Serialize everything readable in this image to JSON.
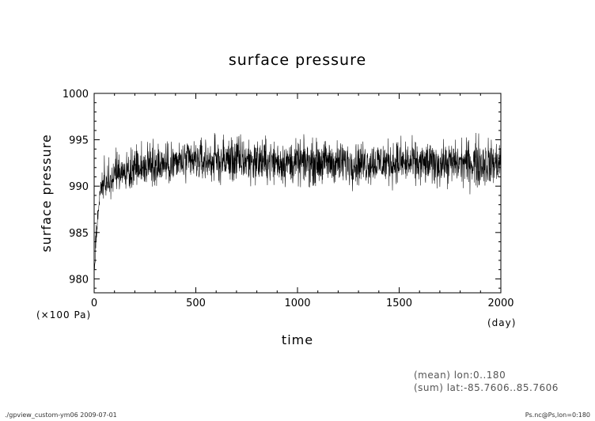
{
  "chart_data": {
    "type": "line",
    "title": "surface pressure",
    "xlabel": "time",
    "ylabel": "surface pressure",
    "x_unit": "(day)",
    "y_unit": "(×100 Pa)",
    "xlim": [
      0,
      2000
    ],
    "ylim": [
      978.5,
      1000
    ],
    "x_ticks": [
      0,
      500,
      1000,
      1500,
      2000
    ],
    "y_ticks": [
      980,
      985,
      990,
      995,
      1000
    ],
    "grid": false,
    "series": [
      {
        "color": "#000000",
        "sample_step_days": 1,
        "envelope": {
          "x": [
            0,
            10,
            20,
            30,
            40,
            50,
            60,
            80,
            100,
            150,
            200,
            300,
            400,
            500,
            600,
            700,
            800,
            900,
            1000,
            1100,
            1200,
            1300,
            1400,
            1500,
            1600,
            1700,
            1800,
            1900,
            2000
          ],
          "mean": [
            980.5,
            984.0,
            987.5,
            989.0,
            989.8,
            990.2,
            990.5,
            990.8,
            991.0,
            991.5,
            991.8,
            992.2,
            992.5,
            992.6,
            992.7,
            992.8,
            992.7,
            992.6,
            992.5,
            992.6,
            992.6,
            992.6,
            992.5,
            992.5,
            992.4,
            992.5,
            992.5,
            992.6,
            992.6
          ],
          "min": [
            979.8,
            983.5,
            986.0,
            988.0,
            988.2,
            988.5,
            988.0,
            988.3,
            988.5,
            988.7,
            989.0,
            989.3,
            989.0,
            989.5,
            989.5,
            989.0,
            989.3,
            989.2,
            989.0,
            989.2,
            989.0,
            989.0,
            989.2,
            989.3,
            989.0,
            989.0,
            989.2,
            988.2,
            989.0
          ],
          "max": [
            981.5,
            988.0,
            990.5,
            992.5,
            993.0,
            993.5,
            994.0,
            994.3,
            994.5,
            995.0,
            995.5,
            996.0,
            996.0,
            996.2,
            996.3,
            996.8,
            996.3,
            996.0,
            995.8,
            996.0,
            995.8,
            995.6,
            996.0,
            996.2,
            995.7,
            995.6,
            995.8,
            996.6,
            995.5
          ]
        }
      }
    ],
    "annotations": [
      "(mean) lon:0..180",
      "(sum) lat:-85.7606..85.7606"
    ]
  },
  "footer": {
    "left": "./gpview_custom-ym06  2009-07-01",
    "right": "Ps.nc@Ps,lon=0:180"
  }
}
